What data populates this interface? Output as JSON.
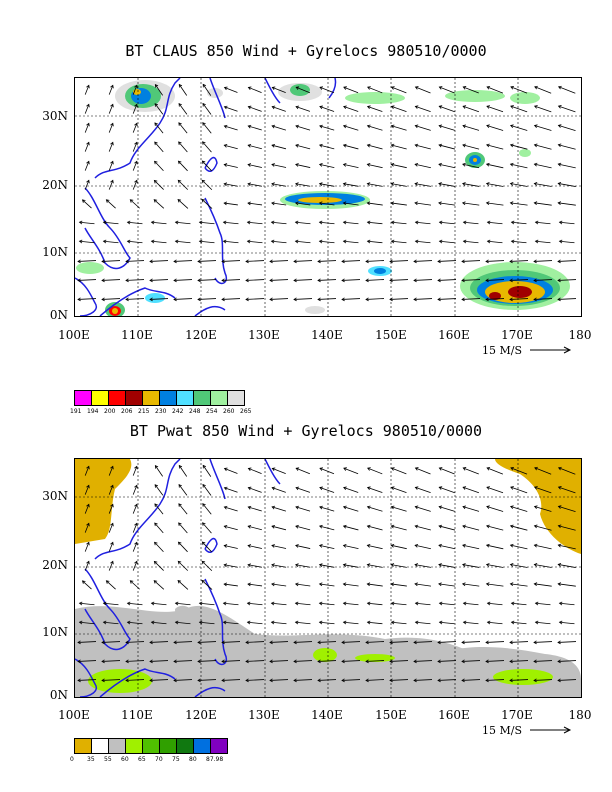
{
  "panels": [
    {
      "title": "BT CLAUS 850 Wind + Gyrelocs 980510/0000",
      "ylabels": [
        "30N",
        "20N",
        "10N",
        "0N"
      ],
      "xlabels": [
        "100E",
        "110E",
        "120E",
        "130E",
        "140E",
        "150E",
        "160E",
        "170E",
        "180"
      ],
      "scale_text": "15 M/S",
      "colorbar": {
        "colors": [
          "#ff00ff",
          "#ffff00",
          "#ff0000",
          "#a00000",
          "#e8b800",
          "#0080e0",
          "#50e0ff",
          "#50c878",
          "#a0f0a0",
          "#e0e0e0"
        ],
        "labels": [
          "191",
          "194",
          "200",
          "206",
          "215",
          "230",
          "242",
          "248",
          "254",
          "260",
          "265"
        ]
      }
    },
    {
      "title": "BT Pwat 850 Wind + Gyrelocs 980510/0000",
      "ylabels": [
        "30N",
        "20N",
        "10N",
        "0N"
      ],
      "xlabels": [
        "100E",
        "110E",
        "120E",
        "130E",
        "140E",
        "150E",
        "160E",
        "170E",
        "180"
      ],
      "scale_text": "15 M/S",
      "colorbar": {
        "colors": [
          "#e0b000",
          "#ffffff",
          "#c0c0c0",
          "#a0f000",
          "#50c000",
          "#30a000",
          "#107810",
          "#0070e0",
          "#8000c0"
        ],
        "labels": [
          "0",
          "35",
          "55",
          "60",
          "65",
          "70",
          "75",
          "80",
          "87.98"
        ]
      }
    }
  ]
}
